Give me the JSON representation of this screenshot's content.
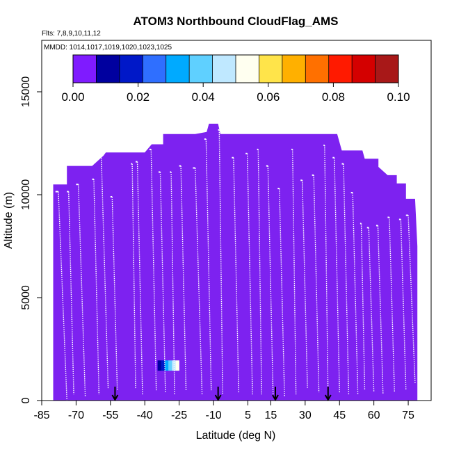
{
  "chart_data": {
    "type": "heatmap",
    "title": "ATOM3 Northbound CloudFlag_AMS",
    "flights_note": "Flts: 7,8,9,10,11,12",
    "dates_note": "MMDD: 1014,1017,1019,1020,1023,1025",
    "xlabel": "Latitude (deg N)",
    "ylabel": "Altitude (m)",
    "xlim": [
      -85,
      85
    ],
    "ylim": [
      0,
      17500
    ],
    "x_ticks": [
      -85,
      -70,
      -55,
      -40,
      -25,
      -10,
      5,
      15,
      30,
      45,
      60,
      75
    ],
    "y_ticks": [
      0,
      5000,
      10000,
      15000
    ],
    "colorbar": {
      "range": [
        0,
        0.1
      ],
      "tick_values": [
        0.0,
        0.02,
        0.04,
        0.06,
        0.08,
        0.1
      ],
      "tick_labels": [
        "0.00",
        "0.02",
        "0.04",
        "0.06",
        "0.08",
        "0.10"
      ],
      "colors": [
        "#7f1bff",
        "#00009f",
        "#0018c8",
        "#2f6fff",
        "#00aaff",
        "#5fd0ff",
        "#bfe8ff",
        "#fffff0",
        "#ffe44a",
        "#ffb000",
        "#ff7000",
        "#ff1a00",
        "#d40000",
        "#a81818"
      ]
    },
    "fill_color": "#7d22f0",
    "fill_value": 0.0,
    "envelope": [
      [
        -80,
        10500
      ],
      [
        -74,
        10500
      ],
      [
        -74,
        11400
      ],
      [
        -63,
        11400
      ],
      [
        -58,
        11900
      ],
      [
        -57,
        12050
      ],
      [
        -49,
        12050
      ],
      [
        -40,
        12050
      ],
      [
        -37,
        12450
      ],
      [
        -32,
        12450
      ],
      [
        -32,
        12950
      ],
      [
        -24,
        12950
      ],
      [
        -18,
        12950
      ],
      [
        -13,
        13050
      ],
      [
        -12,
        13450
      ],
      [
        -8,
        13450
      ],
      [
        -7,
        12950
      ],
      [
        5,
        12950
      ],
      [
        20,
        12950
      ],
      [
        40,
        12950
      ],
      [
        44,
        12950
      ],
      [
        46,
        12150
      ],
      [
        55,
        12150
      ],
      [
        56,
        11750
      ],
      [
        62,
        11750
      ],
      [
        62,
        11350
      ],
      [
        66,
        10950
      ],
      [
        70,
        10950
      ],
      [
        70,
        10550
      ],
      [
        74,
        10550
      ],
      [
        74,
        9800
      ],
      [
        78,
        9800
      ],
      [
        79,
        7500
      ],
      [
        79,
        0
      ],
      [
        -80,
        0
      ]
    ],
    "anomaly": {
      "lat_range": [
        -36,
        -25
      ],
      "alt_range": [
        1450,
        1950
      ],
      "values": [
        0.005,
        0.01,
        0.02,
        0.03,
        0.04,
        0.045,
        0.05
      ]
    },
    "arrows_lat": [
      -53,
      -8,
      17,
      40
    ],
    "profiles": [
      [
        -79,
        10150,
        -74,
        0
      ],
      [
        -74,
        10150,
        -71,
        300
      ],
      [
        -70,
        10500,
        -66,
        200
      ],
      [
        -63,
        10750,
        -60,
        300
      ],
      [
        -60,
        11900,
        -56,
        600
      ],
      [
        -55,
        9900,
        -52,
        500
      ],
      [
        -46,
        11500,
        -44,
        600
      ],
      [
        -44,
        11600,
        -41,
        300
      ],
      [
        -38,
        12200,
        -35,
        500
      ],
      [
        -34,
        11100,
        -31,
        400
      ],
      [
        -29,
        11100,
        -27,
        300
      ],
      [
        -25,
        11400,
        -22,
        500
      ],
      [
        -19,
        11300,
        -15,
        300
      ],
      [
        -14,
        12700,
        -11,
        500
      ],
      [
        -8,
        13150,
        -6,
        300
      ],
      [
        -2,
        11800,
        1,
        400
      ],
      [
        4,
        12000,
        7,
        300
      ],
      [
        9,
        12200,
        11,
        300
      ],
      [
        13,
        11400,
        16,
        300
      ],
      [
        18,
        10300,
        21,
        200
      ],
      [
        24,
        12200,
        26,
        300
      ],
      [
        28,
        10700,
        31,
        600
      ],
      [
        33,
        10950,
        36,
        400
      ],
      [
        38,
        12400,
        40,
        300
      ],
      [
        42,
        11800,
        45,
        400
      ],
      [
        46,
        11500,
        49,
        300
      ],
      [
        50,
        10100,
        53,
        300
      ],
      [
        54,
        8600,
        56,
        500
      ],
      [
        57,
        8400,
        60,
        400
      ],
      [
        61,
        8500,
        64,
        300
      ],
      [
        66,
        8900,
        69,
        400
      ],
      [
        71,
        8800,
        74,
        500
      ],
      [
        74,
        9000,
        78,
        800
      ]
    ]
  }
}
